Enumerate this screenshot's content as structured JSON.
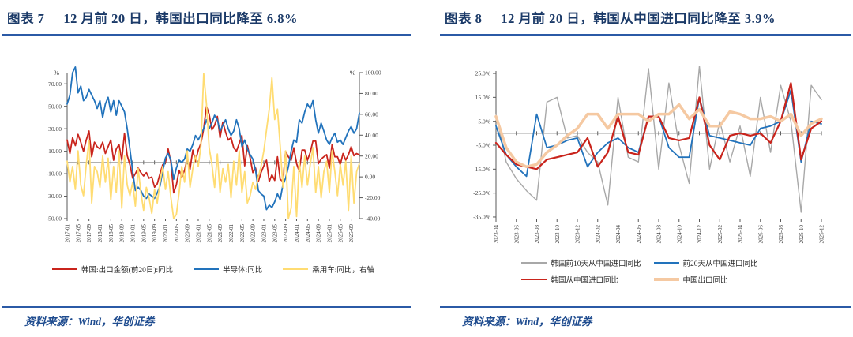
{
  "colors": {
    "title_navy": "#1B3A68",
    "rule_blue": "#2B5AA6",
    "source_blue": "#1F4C8F",
    "axis_gray": "#595959",
    "zero_gray": "#808080",
    "series_red": "#C9241C",
    "series_blue": "#2273BC",
    "series_yellow": "#FFDC72",
    "series_gray": "#A8A8A8",
    "series_peach": "#F5C9A2"
  },
  "panels": [
    {
      "title_prefix": "图表 7",
      "title_text": "12 月前 20 日，韩国出口同比降至 6.8%",
      "source": "资料来源：Wind，华创证券"
    },
    {
      "title_prefix": "图表 8",
      "title_text": "12 月前 20 日，韩国从中国进口同比降至 3.9%",
      "source": "资料来源：Wind，华创证券"
    }
  ],
  "chart_data": [
    {
      "type": "line",
      "title": "韩国出口同比（月度，2017-01 至 2025-12）",
      "x_monthly_start": "2017-01",
      "x_monthly_end": "2025-12",
      "tick_every": 4,
      "x_tick_labels": [
        "2017-01",
        "2017-05",
        "2017-09",
        "2018-01",
        "2018-05",
        "2018-09",
        "2019-01",
        "2019-05",
        "2019-09",
        "2020-01",
        "2020-05",
        "2020-09",
        "2021-01",
        "2021-05",
        "2021-09",
        "2022-01",
        "2022-05",
        "2022-09",
        "2023-01",
        "2023-05",
        "2023-09",
        "2024-01",
        "2024-05",
        "2024-09",
        "2025-01",
        "2025-05",
        "2025-09"
      ],
      "left_axis": {
        "unit": "%",
        "min": -50,
        "max": 80,
        "ticks": [
          {
            "v": 70,
            "label": "70.00"
          },
          {
            "v": 50,
            "label": "50.00"
          },
          {
            "v": 30,
            "label": "30.00"
          },
          {
            "v": 10,
            "label": "10.00"
          },
          {
            "v": -10,
            "label": "-10.00"
          },
          {
            "v": -30,
            "label": "-30.00"
          },
          {
            "v": -50,
            "label": "-50.00"
          }
        ]
      },
      "right_axis": {
        "unit": "%",
        "min": -40,
        "max": 100,
        "ticks": [
          {
            "v": 100,
            "label": "100.00"
          },
          {
            "v": 80,
            "label": "80.00"
          },
          {
            "v": 60,
            "label": "60.00"
          },
          {
            "v": 40,
            "label": "40.00"
          },
          {
            "v": 20,
            "label": "20.00"
          },
          {
            "v": 0,
            "label": "0.00"
          },
          {
            "v": -20,
            "label": "-20.00"
          },
          {
            "v": -40,
            "label": "-40.00"
          }
        ]
      },
      "series": [
        {
          "name": "韩国:出口金额(前20日):同比",
          "axis": "left",
          "color": "#C9241C",
          "width": 1.8,
          "values": [
            20,
            8,
            22,
            15,
            25,
            18,
            10,
            20,
            28,
            5,
            18,
            14,
            12,
            18,
            8,
            14,
            20,
            2,
            12,
            16,
            2,
            26,
            6,
            -2,
            -14,
            -10,
            -5,
            -9,
            -12,
            -9,
            -14,
            -13,
            -22,
            -19,
            -10,
            -2,
            0,
            12,
            0,
            -27,
            -20,
            -7,
            -13,
            -7,
            4,
            -6,
            11,
            1,
            11,
            17,
            30,
            50,
            43,
            29,
            33,
            41,
            22,
            36,
            27,
            20,
            22,
            13,
            10,
            17,
            24,
            -3,
            15,
            4,
            -9,
            -5,
            -17,
            -9,
            -3,
            2,
            -17,
            -11,
            -16,
            5,
            -15,
            -17,
            10,
            5,
            2,
            13,
            -1,
            -8,
            11,
            11,
            2,
            9,
            19,
            19,
            -1,
            3,
            5,
            7,
            -5,
            16,
            5,
            5,
            -2,
            8,
            2,
            7,
            14,
            6,
            8,
            6.8
          ]
        },
        {
          "name": "半导体:同比",
          "axis": "left",
          "color": "#2273BC",
          "width": 1.8,
          "values": [
            52,
            60,
            80,
            85,
            62,
            68,
            55,
            58,
            65,
            60,
            55,
            48,
            55,
            40,
            52,
            58,
            45,
            55,
            42,
            55,
            50,
            45,
            30,
            12,
            -8,
            -25,
            -22,
            -25,
            -30,
            -32,
            -28,
            -30,
            -32,
            -27,
            -21,
            -8,
            4,
            8,
            2,
            -15,
            -5,
            2,
            0,
            3,
            12,
            10,
            16,
            24,
            20,
            25,
            30,
            38,
            30,
            35,
            42,
            38,
            28,
            33,
            38,
            30,
            24,
            28,
            38,
            30,
            14,
            20,
            12,
            7,
            3,
            -7,
            -25,
            -28,
            -30,
            -42,
            -38,
            -40,
            -35,
            -28,
            -33,
            -20,
            -14,
            -4,
            10,
            20,
            18,
            38,
            35,
            45,
            52,
            48,
            55,
            38,
            26,
            35,
            28,
            20,
            16,
            22,
            26,
            18,
            20,
            16,
            22,
            28,
            32,
            26,
            30,
            44
          ]
        },
        {
          "name": "乘用车:同比，右轴",
          "axis": "right",
          "color": "#FFDC72",
          "width": 1.8,
          "values": [
            15,
            -5,
            10,
            -12,
            25,
            -8,
            -18,
            12,
            35,
            -25,
            10,
            5,
            -10,
            20,
            -5,
            18,
            -22,
            10,
            -15,
            25,
            -30,
            20,
            -8,
            -18,
            -5,
            -28,
            8,
            -15,
            -32,
            -10,
            -20,
            -35,
            -12,
            -25,
            -5,
            10,
            -12,
            5,
            -20,
            -40,
            -36,
            -15,
            10,
            -5,
            25,
            -10,
            8,
            20,
            10,
            30,
            99,
            70,
            28,
            12,
            -10,
            22,
            -15,
            8,
            -5,
            12,
            -20,
            15,
            -8,
            25,
            -15,
            5,
            -25,
            -18,
            -5,
            -12,
            0,
            10,
            25,
            45,
            65,
            95,
            55,
            65,
            30,
            -10,
            25,
            -40,
            -30,
            10,
            -38,
            15,
            -10,
            20,
            -8,
            12,
            28,
            -15,
            10,
            -20,
            5,
            15,
            -15,
            25,
            5,
            -18,
            12,
            -8,
            15,
            -32,
            20,
            -25,
            5,
            13
          ]
        }
      ]
    },
    {
      "type": "line",
      "title": "韩国自中国进口同比（月度，2023-04 至 2025-12）",
      "x_monthly_start": "2023-04",
      "x_monthly_end": "2025-12",
      "tick_every": 2,
      "x_tick_labels": [
        "2023-04",
        "2023-06",
        "2023-08",
        "2023-10",
        "2023-12",
        "2024-02",
        "2024-04",
        "2024-06",
        "2024-08",
        "2024-10",
        "2024-12",
        "2025-02",
        "2025-04",
        "2025-06",
        "2025-08",
        "2025-10",
        "2025-12"
      ],
      "left_axis": {
        "unit": "",
        "min": -36,
        "max": 26,
        "ticks": [
          {
            "v": 25,
            "label": "25.0%"
          },
          {
            "v": 15,
            "label": "15.0%"
          },
          {
            "v": 5,
            "label": "5.0%"
          },
          {
            "v": -5,
            "label": "-5.0%"
          },
          {
            "v": -15,
            "label": "-15.0%"
          },
          {
            "v": -25,
            "label": "-25.0%"
          },
          {
            "v": -35,
            "label": "-35.0%"
          }
        ]
      },
      "right_axis": null,
      "series": [
        {
          "name": "韩国前10天从中国进口同比",
          "axis": "left",
          "color": "#A8A8A8",
          "width": 1.4,
          "values": [
            8,
            -12,
            -19,
            -24,
            -28,
            13,
            15,
            -2,
            -1,
            -8,
            -12,
            -30,
            15,
            -10,
            -12,
            27,
            -15,
            21,
            -5,
            -21,
            28,
            -15,
            5,
            -12,
            3,
            -18,
            15,
            -8,
            20,
            5,
            -33,
            20,
            14
          ]
        },
        {
          "name": "前20天从中国进口同比",
          "axis": "left",
          "color": "#2273BC",
          "width": 1.8,
          "values": [
            3,
            -9,
            -14,
            -18,
            8,
            -6,
            -5,
            -3,
            -2,
            -14,
            -8,
            -4,
            -2,
            -6,
            -8,
            7,
            7,
            -6,
            -10,
            -10,
            15,
            -1,
            -2,
            -3,
            -4,
            -5,
            2,
            3,
            5,
            18,
            -12,
            5,
            3.9
          ]
        },
        {
          "name": "韩国从中国进口同比",
          "axis": "left",
          "color": "#C9241C",
          "width": 2.2,
          "values": [
            -4,
            -9,
            -13,
            -14,
            -15,
            -11,
            -10,
            -9,
            -8,
            -2,
            -14,
            -8,
            7,
            -8,
            -9,
            7,
            7,
            -2,
            -3,
            -2,
            15,
            -5,
            -11,
            -1,
            0,
            -1,
            0,
            -4,
            5,
            21,
            -11,
            2,
            5
          ]
        },
        {
          "name": "中国出口同比",
          "axis": "left",
          "color": "#F5C9A2",
          "width": 3.5,
          "values": [
            7,
            -6,
            -12,
            -14,
            -13,
            -8,
            -5,
            -1,
            2,
            8,
            8,
            2,
            8,
            8,
            8,
            5,
            8,
            8,
            12,
            6,
            10,
            3,
            3,
            9,
            8,
            6,
            6,
            7,
            5,
            8,
            -1,
            4,
            6
          ]
        }
      ]
    }
  ]
}
